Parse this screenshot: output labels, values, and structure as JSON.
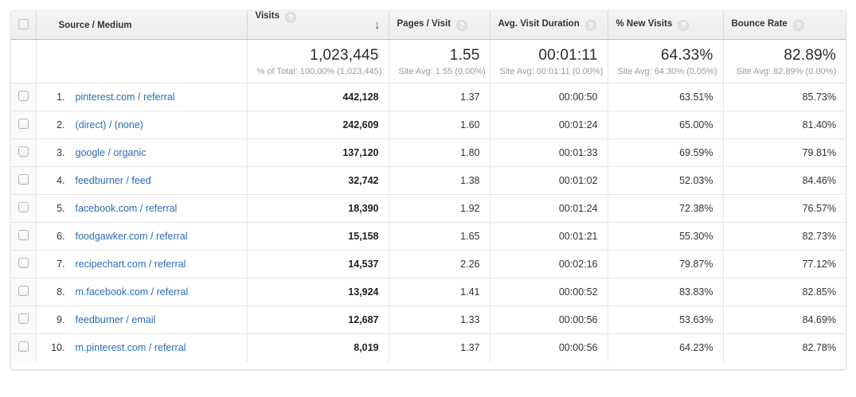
{
  "colors": {
    "link_blue": "#2a6cb5",
    "header_bg": "#f0f0f0",
    "row_border": "#e5e5e5",
    "note_gray": "#9a9a9a"
  },
  "icons": {
    "help": "?",
    "sort_descending": "↓"
  },
  "table": {
    "columns": {
      "source": {
        "label": "Source / Medium"
      },
      "visits": {
        "label": "Visits",
        "sorted": "descending"
      },
      "pages": {
        "label": "Pages / Visit"
      },
      "duration": {
        "label": "Avg. Visit Duration"
      },
      "new_visits": {
        "label": "% New Visits"
      },
      "bounce": {
        "label": "Bounce Rate"
      }
    },
    "summary": {
      "visits": "1,023,445",
      "visits_note": "% of Total: 100.00% (1,023,445)",
      "pages": "1.55",
      "pages_note": "Site Avg: 1.55 (0.00%)",
      "duration": "00:01:11",
      "duration_note": "Site Avg: 00:01:11 (0.00%)",
      "new_visits": "64.33%",
      "new_visits_note": "Site Avg: 64.30% (0.05%)",
      "bounce": "82.89%",
      "bounce_note": "Site Avg: 82.89% (0.00%)"
    },
    "rows": [
      {
        "index": "1.",
        "source": "pinterest.com / referral",
        "visits": "442,128",
        "pages": "1.37",
        "duration": "00:00:50",
        "new_visits": "63.51%",
        "bounce": "85.73%"
      },
      {
        "index": "2.",
        "source": "(direct) / (none)",
        "visits": "242,609",
        "pages": "1.60",
        "duration": "00:01:24",
        "new_visits": "65.00%",
        "bounce": "81.40%"
      },
      {
        "index": "3.",
        "source": "google / organic",
        "visits": "137,120",
        "pages": "1.80",
        "duration": "00:01:33",
        "new_visits": "69.59%",
        "bounce": "79.81%"
      },
      {
        "index": "4.",
        "source": "feedburner / feed",
        "visits": "32,742",
        "pages": "1.38",
        "duration": "00:01:02",
        "new_visits": "52.03%",
        "bounce": "84.46%"
      },
      {
        "index": "5.",
        "source": "facebook.com / referral",
        "visits": "18,390",
        "pages": "1.92",
        "duration": "00:01:24",
        "new_visits": "72.38%",
        "bounce": "76.57%"
      },
      {
        "index": "6.",
        "source": "foodgawker.com / referral",
        "visits": "15,158",
        "pages": "1.65",
        "duration": "00:01:21",
        "new_visits": "55.30%",
        "bounce": "82.73%"
      },
      {
        "index": "7.",
        "source": "recipechart.com / referral",
        "visits": "14,537",
        "pages": "2.26",
        "duration": "00:02:16",
        "new_visits": "79.87%",
        "bounce": "77.12%"
      },
      {
        "index": "8.",
        "source": "m.facebook.com / referral",
        "visits": "13,924",
        "pages": "1.41",
        "duration": "00:00:52",
        "new_visits": "83.83%",
        "bounce": "82.85%"
      },
      {
        "index": "9.",
        "source": "feedburner / email",
        "visits": "12,687",
        "pages": "1.33",
        "duration": "00:00:56",
        "new_visits": "53.63%",
        "bounce": "84.69%"
      },
      {
        "index": "10.",
        "source": "m.pinterest.com / referral",
        "visits": "8,019",
        "pages": "1.37",
        "duration": "00:00:56",
        "new_visits": "64.23%",
        "bounce": "82.78%"
      }
    ]
  }
}
